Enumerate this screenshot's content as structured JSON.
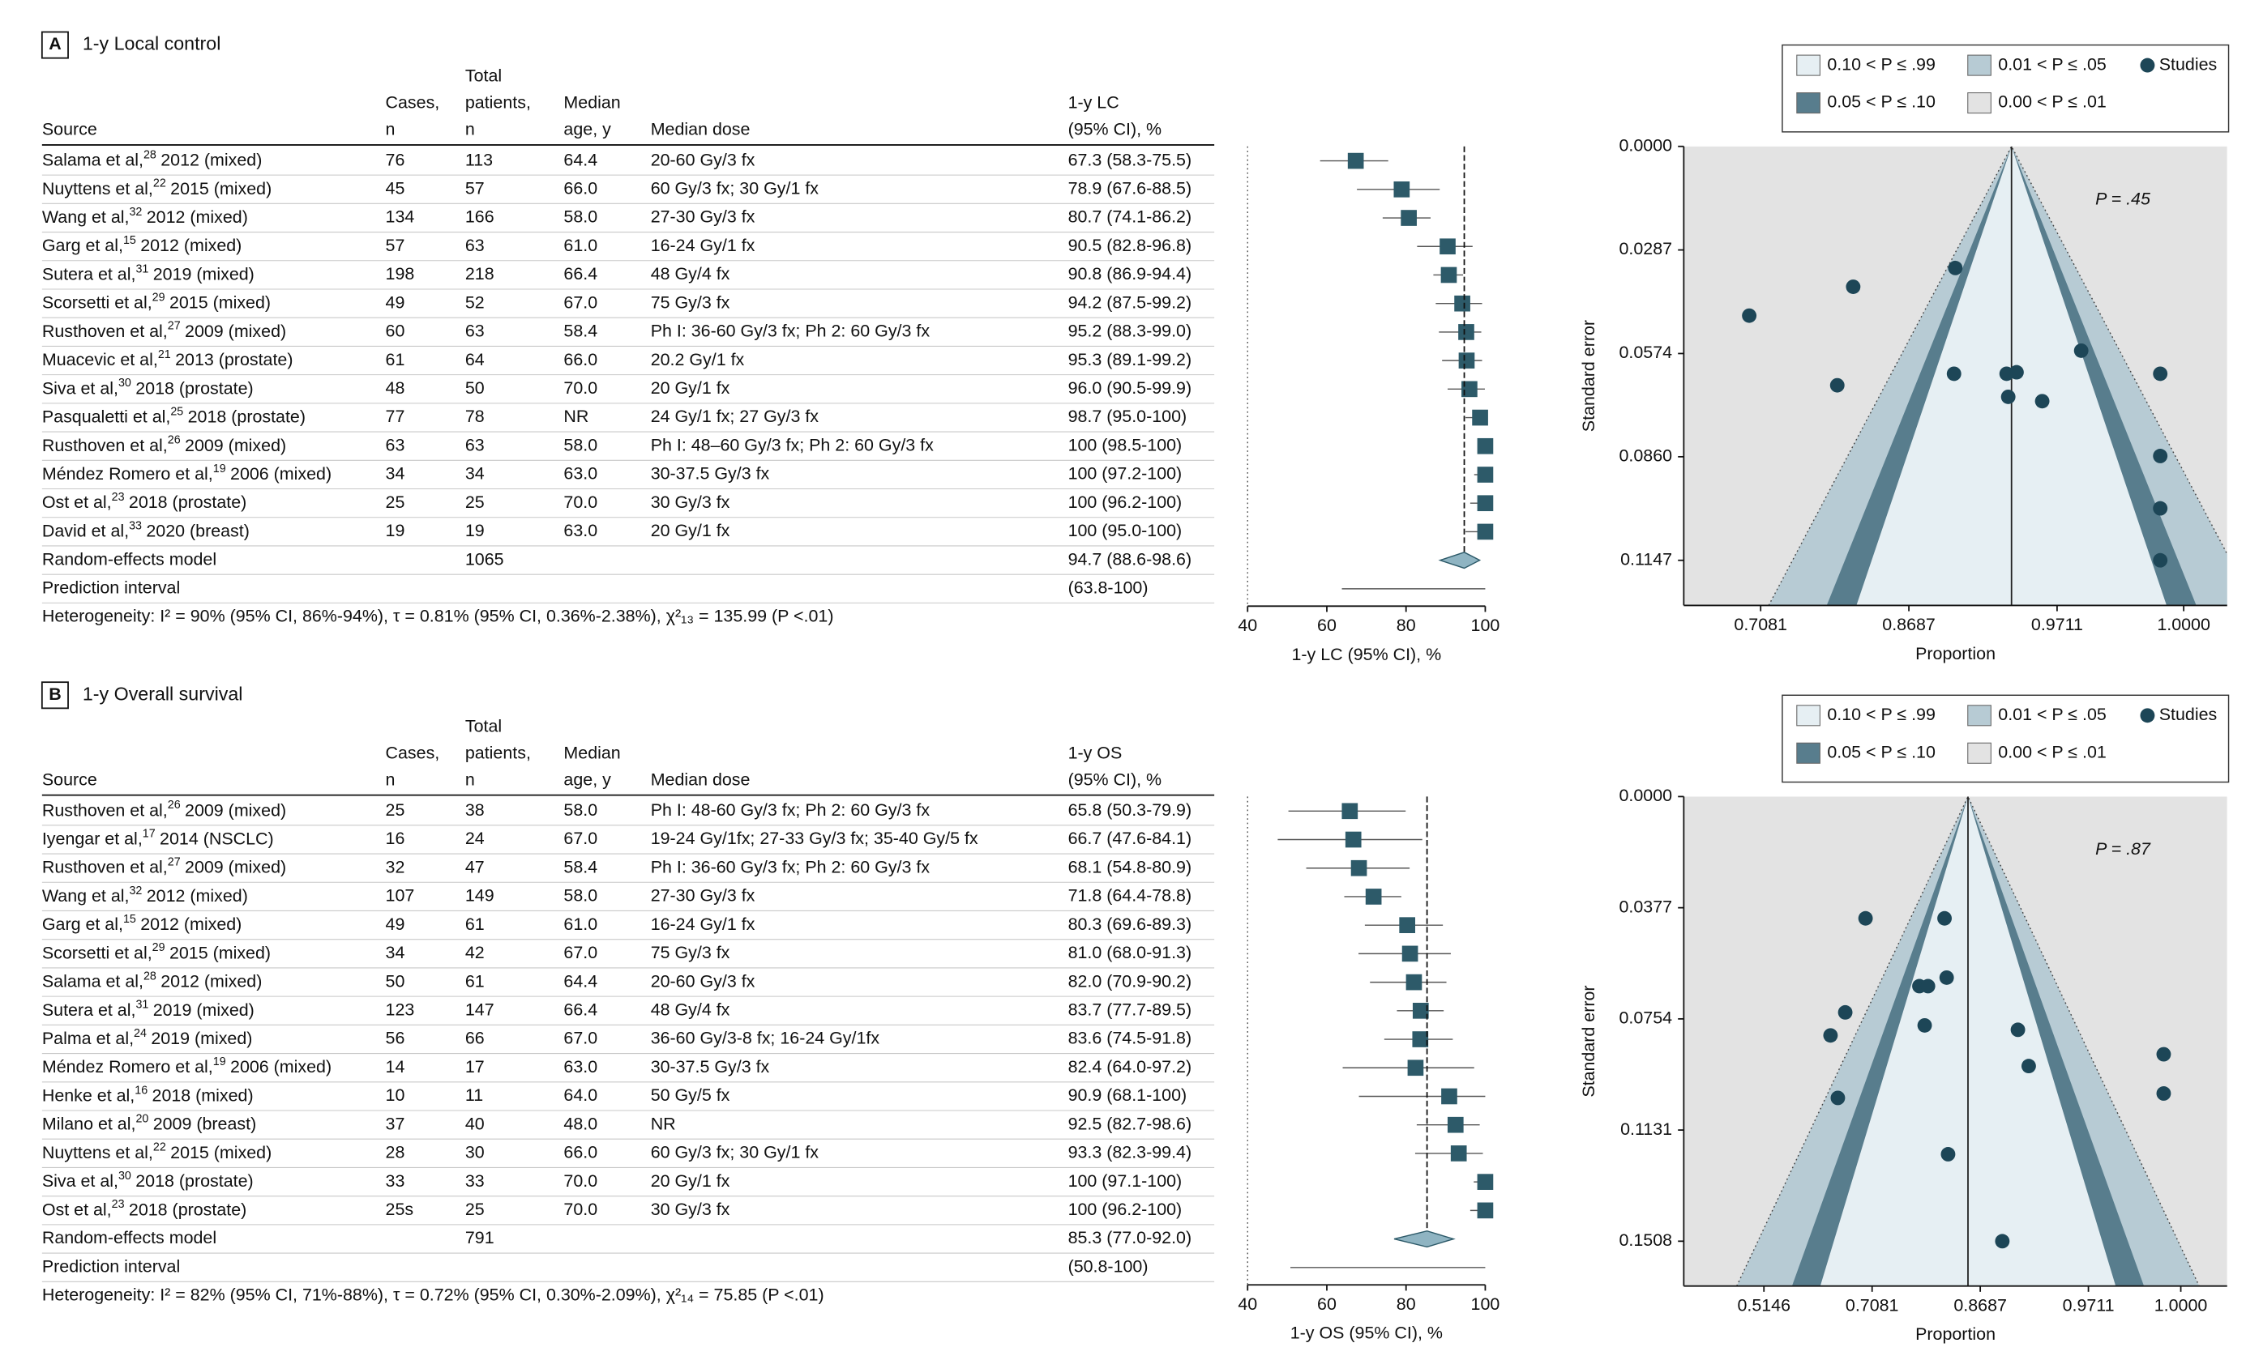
{
  "chart_data": [
    {
      "type": "forest",
      "panel": "A",
      "title": "1-y Local control",
      "columns": [
        [
          "Source"
        ],
        [
          "Cases,",
          "n"
        ],
        [
          "Total",
          "patients,",
          "n"
        ],
        [
          "Median",
          "age, y"
        ],
        [
          "Median dose"
        ],
        [
          "1-y LC",
          "(95% CI), %"
        ]
      ],
      "rows": [
        {
          "source": [
            "Salama et al,",
            "28",
            "2012 (mixed)"
          ],
          "cells": [
            "76",
            "113",
            "64.4",
            "20-60 Gy/3 fx"
          ],
          "ci_label": "67.3 (58.3-75.5)",
          "estimate": 67.3,
          "lower": 58.3,
          "upper": 75.5
        },
        {
          "source": [
            "Nuyttens et al,",
            "22",
            "2015 (mixed)"
          ],
          "cells": [
            "45",
            "57",
            "66.0",
            "60 Gy/3 fx; 30 Gy/1 fx"
          ],
          "ci_label": "78.9 (67.6-88.5)",
          "estimate": 78.9,
          "lower": 67.6,
          "upper": 88.5
        },
        {
          "source": [
            "Wang et al,",
            "32",
            "2012 (mixed)"
          ],
          "cells": [
            "134",
            "166",
            "58.0",
            "27-30 Gy/3 fx"
          ],
          "ci_label": "80.7 (74.1-86.2)",
          "estimate": 80.7,
          "lower": 74.1,
          "upper": 86.2
        },
        {
          "source": [
            "Garg et al,",
            "15",
            "2012 (mixed)"
          ],
          "cells": [
            "57",
            "63",
            "61.0",
            "16-24 Gy/1 fx"
          ],
          "ci_label": "90.5 (82.8-96.8)",
          "estimate": 90.5,
          "lower": 82.8,
          "upper": 96.8
        },
        {
          "source": [
            "Sutera et al,",
            "31",
            "2019 (mixed)"
          ],
          "cells": [
            "198",
            "218",
            "66.4",
            "48 Gy/4 fx"
          ],
          "ci_label": "90.8 (86.9-94.4)",
          "estimate": 90.8,
          "lower": 86.9,
          "upper": 94.4
        },
        {
          "source": [
            "Scorsetti et al,",
            "29",
            "2015 (mixed)"
          ],
          "cells": [
            "49",
            "52",
            "67.0",
            "75 Gy/3 fx"
          ],
          "ci_label": "94.2 (87.5-99.2)",
          "estimate": 94.2,
          "lower": 87.5,
          "upper": 99.2
        },
        {
          "source": [
            "Rusthoven et al,",
            "27",
            "2009 (mixed)"
          ],
          "cells": [
            "60",
            "63",
            "58.4",
            "Ph I: 36-60 Gy/3 fx; Ph 2: 60 Gy/3 fx"
          ],
          "ci_label": "95.2 (88.3-99.0)",
          "estimate": 95.2,
          "lower": 88.3,
          "upper": 99.0
        },
        {
          "source": [
            "Muacevic et al,",
            "21",
            "2013 (prostate)"
          ],
          "cells": [
            "61",
            "64",
            "66.0",
            "20.2 Gy/1 fx"
          ],
          "ci_label": "95.3 (89.1-99.2)",
          "estimate": 95.3,
          "lower": 89.1,
          "upper": 99.2
        },
        {
          "source": [
            "Siva et al,",
            "30",
            "2018 (prostate)"
          ],
          "cells": [
            "48",
            "50",
            "70.0",
            "20 Gy/1 fx"
          ],
          "ci_label": "96.0 (90.5-99.9)",
          "estimate": 96.0,
          "lower": 90.5,
          "upper": 99.9
        },
        {
          "source": [
            "Pasqualetti et al,",
            "25",
            "2018 (prostate)"
          ],
          "cells": [
            "77",
            "78",
            "NR",
            "24 Gy/1 fx; 27 Gy/3 fx"
          ],
          "ci_label": "98.7 (95.0-100)",
          "estimate": 98.7,
          "lower": 95.0,
          "upper": 100
        },
        {
          "source": [
            "Rusthoven et al,",
            "26",
            "2009 (mixed)"
          ],
          "cells": [
            "63",
            "63",
            "58.0",
            "Ph I: 48–60 Gy/3 fx; Ph 2: 60 Gy/3 fx"
          ],
          "ci_label": "100 (98.5-100)",
          "estimate": 100,
          "lower": 98.5,
          "upper": 100
        },
        {
          "source": [
            "Méndez Romero et al,",
            "19",
            "2006 (mixed)"
          ],
          "cells": [
            "34",
            "34",
            "63.0",
            "30-37.5 Gy/3 fx"
          ],
          "ci_label": "100 (97.2-100)",
          "estimate": 100,
          "lower": 97.2,
          "upper": 100
        },
        {
          "source": [
            "Ost et al,",
            "23",
            "2018 (prostate)"
          ],
          "cells": [
            "25",
            "25",
            "70.0",
            "30 Gy/3 fx"
          ],
          "ci_label": "100 (96.2-100)",
          "estimate": 100,
          "lower": 96.2,
          "upper": 100
        },
        {
          "source": [
            "David et al,",
            "33",
            "2020 (breast)"
          ],
          "cells": [
            "19",
            "19",
            "63.0",
            "20 Gy/1 fx"
          ],
          "ci_label": "100 (95.0-100)",
          "estimate": 100,
          "lower": 95.0,
          "upper": 100
        }
      ],
      "model": {
        "label": "Random-effects model",
        "total": "1065",
        "ci_label": "94.7 (88.6-98.6)",
        "estimate": 94.7,
        "lower": 88.6,
        "upper": 98.6
      },
      "prediction": {
        "label": "Prediction interval",
        "ci_label": "(63.8-100)",
        "lower": 63.8,
        "upper": 100
      },
      "heterogeneity": "Heterogeneity: I² = 90% (95% CI, 86%-94%), τ = 0.81% (95% CI, 0.36%-2.38%), χ²₁₃ = 135.99 (P <.01)",
      "xlim": [
        40,
        100
      ],
      "xticks": [
        40,
        60,
        80,
        100
      ],
      "xlabel": "1-y LC (95% CI), %",
      "color": "#2d5a69",
      "diamond_color": "#8fb4c2"
    },
    {
      "type": "funnel",
      "legend": [
        {
          "label": "0.10 < P ≤ .99",
          "range": [
            0.1,
            0.99
          ],
          "color": "#e6eff3"
        },
        {
          "label": "0.01 < P ≤ .05",
          "range": [
            0.01,
            0.05
          ],
          "color": "#b7cbd4"
        },
        {
          "label": "0.05 < P ≤ .10",
          "range": [
            0.05,
            0.1
          ],
          "color": "#587d8d"
        },
        {
          "label": "0.00 < P ≤ .01",
          "range": [
            0.0,
            0.01
          ],
          "color": "#e3e3e3"
        }
      ],
      "points_name": "Studies",
      "point_color": "#1d4657",
      "x": [
        0.908,
        0.694,
        0.814,
        0.797,
        0.907,
        0.944,
        0.95,
        0.945,
        0.964,
        0.981,
        0.999,
        0.999,
        0.999,
        0.999
      ],
      "y": [
        0.0337,
        0.0469,
        0.0389,
        0.0662,
        0.063,
        0.063,
        0.0626,
        0.0694,
        0.0706,
        0.0566,
        0.063,
        0.0858,
        0.1003,
        0.1147
      ],
      "reference": 0.947,
      "annotation": "P = .45",
      "xlim": [
        0.61,
        1.0
      ],
      "xscale": "arcsine",
      "xticks": [
        {
          "value": 0.7081,
          "label": "0.7081"
        },
        {
          "value": 0.8687,
          "label": "0.8687"
        },
        {
          "value": 0.9711,
          "label": "0.9711"
        },
        {
          "value": 1.0,
          "label": "1.0000"
        }
      ],
      "ylim": [
        0,
        0.1272
      ],
      "y_reversed": true,
      "yticks": [
        {
          "value": 0,
          "label": "0.0000"
        },
        {
          "value": 0.0287,
          "label": "0.0287"
        },
        {
          "value": 0.0574,
          "label": "0.0574"
        },
        {
          "value": 0.086,
          "label": "0.0860"
        },
        {
          "value": 0.1147,
          "label": "0.1147"
        }
      ],
      "xlabel": "Proportion",
      "ylabel": "Standard error"
    },
    {
      "type": "forest",
      "panel": "B",
      "title": "1-y Overall survival",
      "columns": [
        [
          "Source"
        ],
        [
          "Cases,",
          "n"
        ],
        [
          "Total",
          "patients,",
          "n"
        ],
        [
          "Median",
          "age, y"
        ],
        [
          "Median dose"
        ],
        [
          "1-y OS",
          "(95% CI), %"
        ]
      ],
      "rows": [
        {
          "source": [
            "Rusthoven et al,",
            "26",
            "2009 (mixed)"
          ],
          "cells": [
            "25",
            "38",
            "58.0",
            "Ph I: 48-60 Gy/3 fx; Ph 2: 60 Gy/3 fx"
          ],
          "ci_label": "65.8 (50.3-79.9)",
          "estimate": 65.8,
          "lower": 50.3,
          "upper": 79.9
        },
        {
          "source": [
            "Iyengar et al,",
            "17",
            "2014 (NSCLC)"
          ],
          "cells": [
            "16",
            "24",
            "67.0",
            "19-24 Gy/1fx; 27-33 Gy/3 fx; 35-40 Gy/5 fx"
          ],
          "ci_label": "66.7 (47.6-84.1)",
          "estimate": 66.7,
          "lower": 47.6,
          "upper": 84.1
        },
        {
          "source": [
            "Rusthoven et al,",
            "27",
            "2009 (mixed)"
          ],
          "cells": [
            "32",
            "47",
            "58.4",
            "Ph I: 36-60 Gy/3 fx; Ph 2: 60 Gy/3 fx"
          ],
          "ci_label": "68.1 (54.8-80.9)",
          "estimate": 68.1,
          "lower": 54.8,
          "upper": 80.9
        },
        {
          "source": [
            "Wang et al,",
            "32",
            "2012 (mixed)"
          ],
          "cells": [
            "107",
            "149",
            "58.0",
            "27-30 Gy/3 fx"
          ],
          "ci_label": "71.8 (64.4-78.8)",
          "estimate": 71.8,
          "lower": 64.4,
          "upper": 78.8
        },
        {
          "source": [
            "Garg et al,",
            "15",
            "2012 (mixed)"
          ],
          "cells": [
            "49",
            "61",
            "61.0",
            "16-24 Gy/1 fx"
          ],
          "ci_label": "80.3 (69.6-89.3)",
          "estimate": 80.3,
          "lower": 69.6,
          "upper": 89.3
        },
        {
          "source": [
            "Scorsetti et al,",
            "29",
            "2015 (mixed)"
          ],
          "cells": [
            "34",
            "42",
            "67.0",
            "75 Gy/3 fx"
          ],
          "ci_label": "81.0 (68.0-91.3)",
          "estimate": 81.0,
          "lower": 68.0,
          "upper": 91.3
        },
        {
          "source": [
            "Salama et al,",
            "28",
            "2012 (mixed)"
          ],
          "cells": [
            "50",
            "61",
            "64.4",
            "20-60 Gy/3 fx"
          ],
          "ci_label": "82.0 (70.9-90.2)",
          "estimate": 82.0,
          "lower": 70.9,
          "upper": 90.2
        },
        {
          "source": [
            "Sutera et al,",
            "31",
            "2019 (mixed)"
          ],
          "cells": [
            "123",
            "147",
            "66.4",
            "48 Gy/4 fx"
          ],
          "ci_label": "83.7 (77.7-89.5)",
          "estimate": 83.7,
          "lower": 77.7,
          "upper": 89.5
        },
        {
          "source": [
            "Palma et al,",
            "24",
            "2019 (mixed)"
          ],
          "cells": [
            "56",
            "66",
            "67.0",
            "36-60 Gy/3-8 fx; 16-24 Gy/1fx"
          ],
          "ci_label": "83.6 (74.5-91.8)",
          "estimate": 83.6,
          "lower": 74.5,
          "upper": 91.8
        },
        {
          "source": [
            "Méndez Romero et al,",
            "19",
            "2006 (mixed)"
          ],
          "cells": [
            "14",
            "17",
            "63.0",
            "30-37.5 Gy/3 fx"
          ],
          "ci_label": "82.4 (64.0-97.2)",
          "estimate": 82.4,
          "lower": 64.0,
          "upper": 97.2
        },
        {
          "source": [
            "Henke et al,",
            "16",
            "2018 (mixed)"
          ],
          "cells": [
            "10",
            "11",
            "64.0",
            "50 Gy/5 fx"
          ],
          "ci_label": "90.9 (68.1-100)",
          "estimate": 90.9,
          "lower": 68.1,
          "upper": 100
        },
        {
          "source": [
            "Milano et al,",
            "20",
            "2009 (breast)"
          ],
          "cells": [
            "37",
            "40",
            "48.0",
            "NR"
          ],
          "ci_label": "92.5 (82.7-98.6)",
          "estimate": 92.5,
          "lower": 82.7,
          "upper": 98.6
        },
        {
          "source": [
            "Nuyttens et al,",
            "22",
            "2015 (mixed)"
          ],
          "cells": [
            "28",
            "30",
            "66.0",
            "60 Gy/3 fx; 30 Gy/1 fx"
          ],
          "ci_label": "93.3 (82.3-99.4)",
          "estimate": 93.3,
          "lower": 82.3,
          "upper": 99.4
        },
        {
          "source": [
            "Siva et al,",
            "30",
            "2018 (prostate)"
          ],
          "cells": [
            "33",
            "33",
            "70.0",
            "20 Gy/1 fx"
          ],
          "ci_label": "100 (97.1-100)",
          "estimate": 100,
          "lower": 97.1,
          "upper": 100
        },
        {
          "source": [
            "Ost et al,",
            "23",
            "2018 (prostate)"
          ],
          "cells": [
            "25s",
            "25",
            "70.0",
            "30 Gy/3 fx"
          ],
          "ci_label": "100 (96.2-100)",
          "estimate": 100,
          "lower": 96.2,
          "upper": 100
        }
      ],
      "model": {
        "label": "Random-effects model",
        "total": "791",
        "ci_label": "85.3 (77.0-92.0)",
        "estimate": 85.3,
        "lower": 77.0,
        "upper": 92.0
      },
      "prediction": {
        "label": "Prediction interval",
        "ci_label": "(50.8-100)",
        "lower": 50.8,
        "upper": 100
      },
      "heterogeneity": "Heterogeneity: I² = 82% (95% CI, 71%-88%), τ = 0.72% (95% CI, 0.30%-2.09%), χ²₁₄ = 75.85 (P <.01)",
      "xlim": [
        40,
        100
      ],
      "xticks": [
        40,
        60,
        80,
        100
      ],
      "xlabel": "1-y OS (95% CI), %",
      "color": "#2d5a69",
      "diamond_color": "#8fb4c2"
    },
    {
      "type": "funnel",
      "legend": [
        {
          "label": "0.10 < P ≤ .99",
          "range": [
            0.1,
            0.99
          ],
          "color": "#e6eff3"
        },
        {
          "label": "0.01 < P ≤ .05",
          "range": [
            0.01,
            0.05
          ],
          "color": "#b7cbd4"
        },
        {
          "label": "0.05 < P ≤ .10",
          "range": [
            0.05,
            0.1
          ],
          "color": "#587d8d"
        },
        {
          "label": "0.00 < P ≤ .01",
          "range": [
            0.0,
            0.01
          ],
          "color": "#e3e3e3"
        }
      ],
      "points_name": "Studies",
      "point_color": "#1d4657",
      "x": [
        0.697,
        0.821,
        0.662,
        0.636,
        0.784,
        0.797,
        0.824,
        0.792,
        0.912,
        0.923,
        0.649,
        0.999,
        0.999,
        0.826,
        0.895
      ],
      "y": [
        0.0413,
        0.0413,
        0.0732,
        0.081,
        0.0643,
        0.0643,
        0.0614,
        0.0776,
        0.0791,
        0.0914,
        0.1022,
        0.0874,
        0.1007,
        0.1213,
        0.1508
      ],
      "reference": 0.853,
      "annotation": "P = .87",
      "xlim": [
        0.368,
        1.0
      ],
      "xscale": "arcsine",
      "xticks": [
        {
          "value": 0.5146,
          "label": "0.5146"
        },
        {
          "value": 0.7081,
          "label": "0.7081"
        },
        {
          "value": 0.8687,
          "label": "0.8687"
        },
        {
          "value": 0.9711,
          "label": "0.9711"
        },
        {
          "value": 1.0,
          "label": "1.0000"
        }
      ],
      "ylim": [
        0,
        0.166
      ],
      "y_reversed": true,
      "yticks": [
        {
          "value": 0,
          "label": "0.0000"
        },
        {
          "value": 0.0377,
          "label": "0.0377"
        },
        {
          "value": 0.0754,
          "label": "0.0754"
        },
        {
          "value": 0.1131,
          "label": "0.1131"
        },
        {
          "value": 0.1508,
          "label": "0.1508"
        }
      ],
      "xlabel": "Proportion",
      "ylabel": "Standard error"
    }
  ]
}
